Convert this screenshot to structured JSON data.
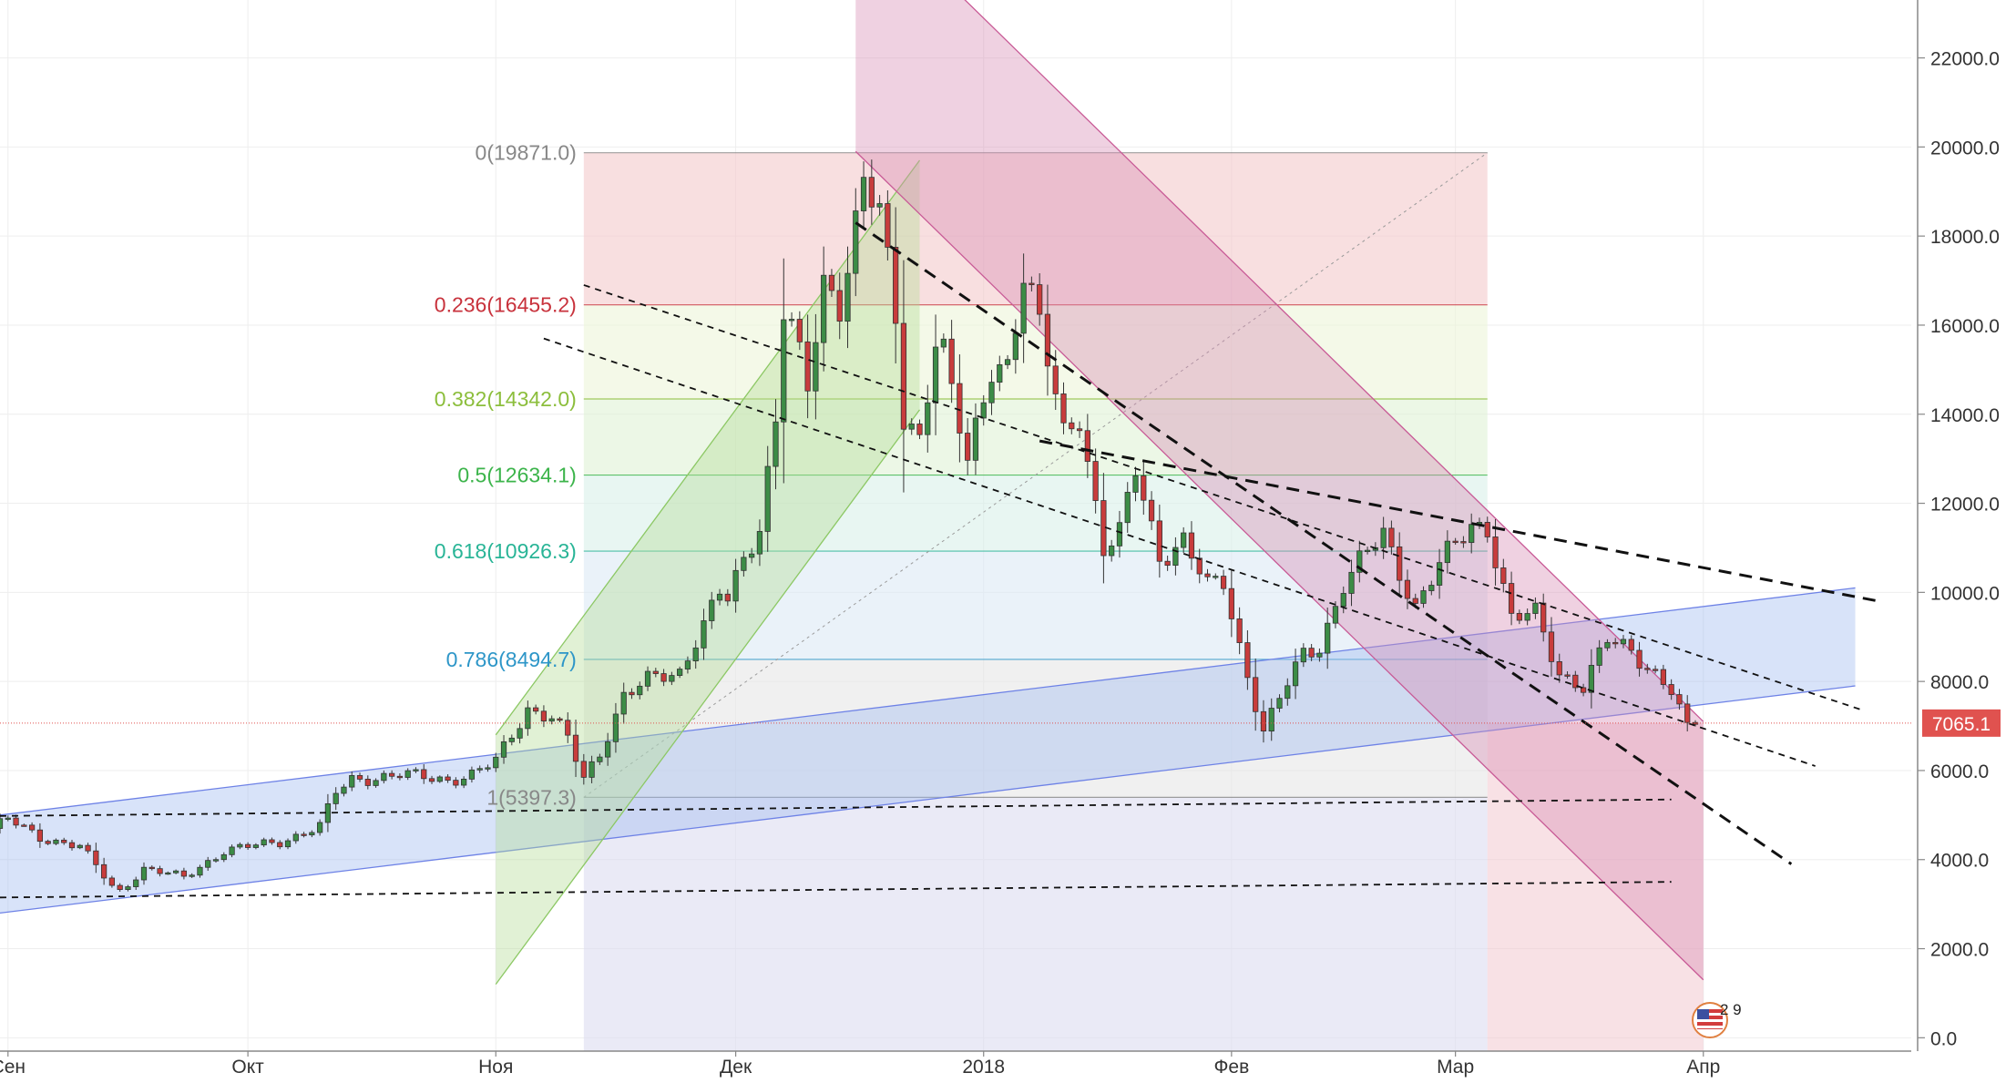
{
  "chart_data": {
    "type": "candlestick",
    "title": "",
    "xlabel": "",
    "ylabel": "",
    "ylim": [
      -300,
      23300
    ],
    "y_ticks": [
      0,
      2000,
      4000,
      6000,
      8000,
      10000,
      12000,
      14000,
      16000,
      18000,
      20000,
      22000
    ],
    "y_tick_labels": [
      "0.0",
      "2000.0",
      "4000.0",
      "6000.0",
      "8000.0",
      "10000.0",
      "12000.0",
      "14000.0",
      "16000.0",
      "18000.0",
      "20000.0",
      "22000.0"
    ],
    "x_ticks": [
      {
        "label": "Сен",
        "date": "2017-09-01"
      },
      {
        "label": "Окт",
        "date": "2017-10-01"
      },
      {
        "label": "Ноя",
        "date": "2017-11-01"
      },
      {
        "label": "Дек",
        "date": "2017-12-01"
      },
      {
        "label": "2018",
        "date": "2018-01-01"
      },
      {
        "label": "Фев",
        "date": "2018-02-01"
      },
      {
        "label": "Мар",
        "date": "2018-03-01"
      },
      {
        "label": "Апр",
        "date": "2018-04-01"
      }
    ],
    "xlim": [
      "2017-08-31",
      "2018-04-27"
    ],
    "grid": true,
    "last_price": {
      "value": 7065.1,
      "label": "7065.1",
      "color": "#e0524f"
    },
    "fib_levels": [
      {
        "ratio": 0,
        "price": 19871.0,
        "label": "0(19871.0)",
        "color": "#888888",
        "fill": "#f3c9cc"
      },
      {
        "ratio": 0.236,
        "price": 16455.2,
        "label": "0.236(16455.2)",
        "color": "#c8323c",
        "fill": "#ecf5d8"
      },
      {
        "ratio": 0.382,
        "price": 14342.0,
        "label": "0.382(14342.0)",
        "color": "#8cbe3c",
        "fill": "#e0f2d5"
      },
      {
        "ratio": 0.5,
        "price": 12634.1,
        "label": "0.5(12634.1)",
        "color": "#3cb44b",
        "fill": "#d8f0ea"
      },
      {
        "ratio": 0.618,
        "price": 10926.3,
        "label": "0.618(10926.3)",
        "color": "#28b496",
        "fill": "#dce9f5"
      },
      {
        "ratio": 0.786,
        "price": 8494.7,
        "label": "0.786(8494.7)",
        "color": "#2d96c8",
        "fill": "#e6e6e6"
      },
      {
        "ratio": 1,
        "price": 5397.3,
        "label": "1(5397.3)",
        "color": "#888888",
        "fill": "#dcdcf0"
      }
    ],
    "series": [
      {
        "kind": "ohlc_daily",
        "up_color": "#3c8c46",
        "down_color": "#c83c3c",
        "anchors": [
          [
            "2017-08-30",
            4700
          ],
          [
            "2017-09-01",
            4900
          ],
          [
            "2017-09-05",
            4500
          ],
          [
            "2017-09-10",
            4300
          ],
          [
            "2017-09-14",
            3400
          ],
          [
            "2017-09-15",
            3300
          ],
          [
            "2017-09-18",
            3800
          ],
          [
            "2017-09-23",
            3600
          ],
          [
            "2017-09-28",
            4200
          ],
          [
            "2017-10-05",
            4400
          ],
          [
            "2017-10-10",
            4750
          ],
          [
            "2017-10-12",
            5500
          ],
          [
            "2017-10-14",
            5800
          ],
          [
            "2017-10-20",
            5900
          ],
          [
            "2017-10-26",
            5800
          ],
          [
            "2017-10-29",
            5900
          ],
          [
            "2017-11-01",
            6200
          ],
          [
            "2017-11-05",
            7400
          ],
          [
            "2017-11-08",
            7200
          ],
          [
            "2017-11-10",
            6700
          ],
          [
            "2017-11-12",
            5800
          ],
          [
            "2017-11-14",
            6400
          ],
          [
            "2017-11-17",
            7700
          ],
          [
            "2017-11-20",
            8000
          ],
          [
            "2017-11-24",
            8200
          ],
          [
            "2017-11-26",
            9000
          ],
          [
            "2017-11-29",
            10000
          ],
          [
            "2017-11-30",
            9800
          ],
          [
            "2017-12-04",
            11500
          ],
          [
            "2017-12-06",
            14000
          ],
          [
            "2017-12-07",
            16500
          ],
          [
            "2017-12-08",
            16000
          ],
          [
            "2017-12-10",
            14500
          ],
          [
            "2017-12-12",
            16800
          ],
          [
            "2017-12-14",
            16500
          ],
          [
            "2017-12-17",
            19400
          ],
          [
            "2017-12-19",
            18500
          ],
          [
            "2017-12-21",
            16000
          ],
          [
            "2017-12-22",
            13800
          ],
          [
            "2017-12-24",
            13500
          ],
          [
            "2017-12-26",
            15800
          ],
          [
            "2017-12-27",
            15500
          ],
          [
            "2017-12-30",
            12800
          ],
          [
            "2018-01-02",
            15000
          ],
          [
            "2018-01-04",
            15200
          ],
          [
            "2018-01-06",
            17200
          ],
          [
            "2018-01-08",
            16000
          ],
          [
            "2018-01-11",
            13500
          ],
          [
            "2018-01-13",
            14000
          ],
          [
            "2018-01-16",
            11000
          ],
          [
            "2018-01-18",
            11300
          ],
          [
            "2018-01-20",
            12700
          ],
          [
            "2018-01-23",
            10800
          ],
          [
            "2018-01-26",
            11200
          ],
          [
            "2018-01-29",
            10100
          ],
          [
            "2018-01-31",
            10200
          ],
          [
            "2018-02-02",
            8800
          ],
          [
            "2018-02-05",
            6900
          ],
          [
            "2018-02-07",
            7600
          ],
          [
            "2018-02-10",
            8600
          ],
          [
            "2018-02-12",
            8800
          ],
          [
            "2018-02-15",
            10200
          ],
          [
            "2018-02-20",
            11300
          ],
          [
            "2018-02-24",
            9700
          ],
          [
            "2018-02-27",
            10600
          ],
          [
            "2018-03-03",
            11500
          ],
          [
            "2018-03-05",
            11500
          ],
          [
            "2018-03-08",
            9400
          ],
          [
            "2018-03-11",
            9500
          ],
          [
            "2018-03-14",
            8200
          ],
          [
            "2018-03-17",
            7900
          ],
          [
            "2018-03-20",
            8900
          ],
          [
            "2018-03-23",
            8700
          ],
          [
            "2018-03-26",
            8200
          ],
          [
            "2018-03-28",
            7800
          ],
          [
            "2018-03-30",
            6900
          ],
          [
            "2018-03-31",
            7065
          ]
        ]
      }
    ],
    "drawings": {
      "fib_box": {
        "x0": "2017-11-12",
        "x1": "2018-03-05",
        "y_top": 19871.0,
        "y_bottom": -300,
        "diagonal_from": [
          "2017-11-12",
          5397.3
        ],
        "diagonal_to": [
          "2018-03-05",
          19871.0
        ]
      },
      "red_below_fib": {
        "x0": "2018-03-05",
        "x1": "2018-04-01",
        "y0": 7065.1
      },
      "blue_channel": {
        "p1": [
          "2017-08-31",
          2800
        ],
        "p2": [
          "2018-04-20",
          7900
        ],
        "width": 2200,
        "color": "#6e82e6"
      },
      "green_channel": {
        "p1": [
          "2017-11-01",
          1200
        ],
        "p2": [
          "2017-12-24",
          14100
        ],
        "width": 5600,
        "color": "#8cc864"
      },
      "pink_channel": {
        "p1": [
          "2017-12-16",
          19900
        ],
        "p2": [
          "2018-04-01",
          1300
        ],
        "width": 5800,
        "color": "#c85a96"
      },
      "dashed_lines": [
        {
          "p1": [
            "2017-08-31",
            4980
          ],
          "p2": [
            "2018-03-28",
            5350
          ],
          "style": "thin"
        },
        {
          "p1": [
            "2017-08-31",
            3150
          ],
          "p2": [
            "2018-03-28",
            3500
          ],
          "style": "thin"
        },
        {
          "p1": [
            "2017-12-16",
            18300
          ],
          "p2": [
            "2018-04-12",
            3900
          ],
          "style": "bold"
        },
        {
          "p1": [
            "2018-01-08",
            13400
          ],
          "p2": [
            "2018-04-23",
            9800
          ],
          "style": "bold"
        },
        {
          "p1": [
            "2017-11-12",
            16900
          ],
          "p2": [
            "2018-04-21",
            7350
          ],
          "style": "thin"
        },
        {
          "p1": [
            "2017-11-07",
            15700
          ],
          "p2": [
            "2018-04-15",
            6100
          ],
          "style": "thin"
        }
      ]
    }
  },
  "corner_badge": {
    "text": "2 9",
    "flag_icon": "us-flag-icon"
  }
}
